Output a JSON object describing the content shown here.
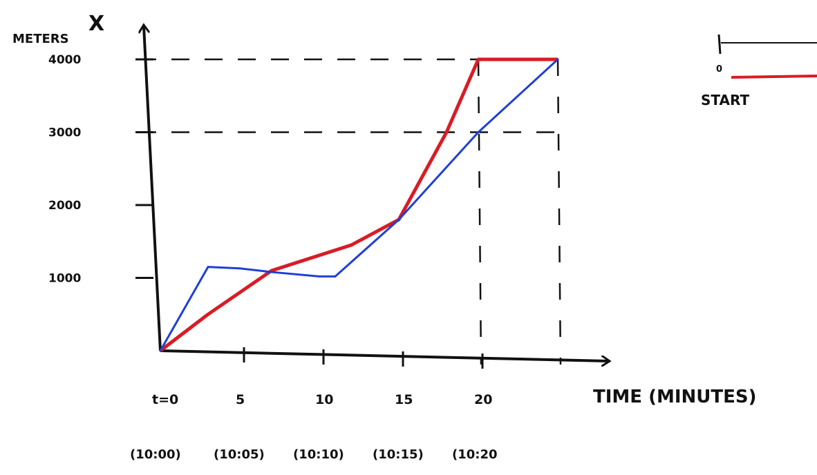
{
  "chart_data": {
    "type": "line",
    "ylabel_unit": "METERS",
    "ylabel_var": "X",
    "xlabel": "TIME (MINUTES)",
    "y_ticks": [
      "1000",
      "2000",
      "3000",
      "4000"
    ],
    "y_tick_values": [
      1000,
      2000,
      3000,
      4000
    ],
    "x_ticks": [
      "t=0",
      "5",
      "10",
      "15",
      "20"
    ],
    "x_tick_values": [
      0,
      5,
      10,
      15,
      20
    ],
    "x_clock_labels": [
      "(10:00)",
      "(10:05)",
      "(10:10)",
      "(10:15)",
      "(10:20"
    ],
    "xlim": [
      0,
      28
    ],
    "ylim": [
      0,
      4600
    ],
    "grid": false,
    "guide_y": [
      3000,
      4000
    ],
    "guide_x": [
      20,
      25
    ],
    "series": [
      {
        "color": "#d91c24",
        "x": [
          0,
          3,
          7,
          12,
          15,
          18,
          20,
          25
        ],
        "y": [
          0,
          500,
          1100,
          1450,
          1800,
          3000,
          4000,
          4000
        ]
      },
      {
        "color": "#1e3fd6",
        "x": [
          0,
          3,
          5,
          7,
          10,
          11,
          15,
          20,
          25
        ],
        "y": [
          0,
          1150,
          1130,
          1080,
          1020,
          1020,
          1800,
          3000,
          4000
        ]
      }
    ]
  },
  "side_panel": {
    "zero_label": "0",
    "start_label": "START"
  },
  "colors": {
    "ink": "#111111",
    "red": "#d91c24",
    "blue": "#1e3fd6"
  }
}
